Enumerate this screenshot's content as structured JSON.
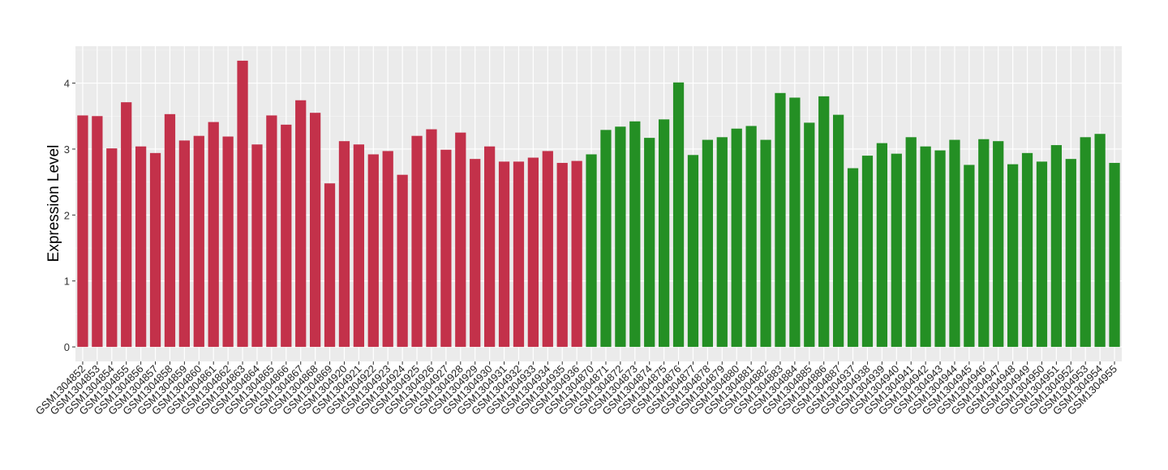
{
  "chart_data": {
    "type": "bar",
    "y_label": "Expression Level",
    "categories": [
      "GSM1304852",
      "GSM1304853",
      "GSM1304854",
      "GSM1304855",
      "GSM1304856",
      "GSM1304857",
      "GSM1304858",
      "GSM1304859",
      "GSM1304860",
      "GSM1304861",
      "GSM1304862",
      "GSM1304863",
      "GSM1304864",
      "GSM1304865",
      "GSM1304866",
      "GSM1304867",
      "GSM1304868",
      "GSM1304869",
      "GSM1304920",
      "GSM1304921",
      "GSM1304922",
      "GSM1304923",
      "GSM1304924",
      "GSM1304925",
      "GSM1304926",
      "GSM1304927",
      "GSM1304928",
      "GSM1304929",
      "GSM1304930",
      "GSM1304931",
      "GSM1304932",
      "GSM1304933",
      "GSM1304934",
      "GSM1304935",
      "GSM1304936",
      "GSM1304870",
      "GSM1304871",
      "GSM1304872",
      "GSM1304873",
      "GSM1304874",
      "GSM1304875",
      "GSM1304876",
      "GSM1304877",
      "GSM1304878",
      "GSM1304879",
      "GSM1304880",
      "GSM1304881",
      "GSM1304882",
      "GSM1304883",
      "GSM1304884",
      "GSM1304885",
      "GSM1304886",
      "GSM1304887",
      "GSM1304937",
      "GSM1304938",
      "GSM1304939",
      "GSM1304940",
      "GSM1304941",
      "GSM1304942",
      "GSM1304943",
      "GSM1304944",
      "GSM1304945",
      "GSM1304946",
      "GSM1304947",
      "GSM1304948",
      "GSM1304949",
      "GSM1304950",
      "GSM1304951",
      "GSM1304952",
      "GSM1304953",
      "GSM1304954",
      "GSM1304955"
    ],
    "values": [
      3.51,
      3.5,
      3.01,
      3.71,
      3.04,
      2.94,
      3.53,
      3.13,
      3.2,
      3.41,
      3.19,
      4.34,
      3.07,
      3.51,
      3.37,
      3.74,
      3.55,
      2.48,
      3.12,
      3.07,
      2.92,
      2.97,
      2.61,
      3.2,
      3.3,
      2.99,
      3.25,
      2.85,
      3.04,
      2.81,
      2.81,
      2.87,
      2.97,
      2.79,
      2.82,
      2.92,
      3.29,
      3.34,
      3.42,
      3.17,
      3.45,
      4.01,
      2.91,
      3.14,
      3.18,
      3.31,
      3.35,
      3.14,
      3.85,
      3.78,
      3.4,
      3.8,
      3.52,
      2.71,
      2.9,
      3.09,
      2.93,
      3.18,
      3.04,
      2.98,
      3.14,
      2.76,
      3.15,
      3.12,
      2.77,
      2.94,
      2.81,
      3.06,
      2.85,
      3.18,
      3.23,
      2.79
    ],
    "colors": [
      "#c3314a",
      "#c3314a",
      "#c3314a",
      "#c3314a",
      "#c3314a",
      "#c3314a",
      "#c3314a",
      "#c3314a",
      "#c3314a",
      "#c3314a",
      "#c3314a",
      "#c3314a",
      "#c3314a",
      "#c3314a",
      "#c3314a",
      "#c3314a",
      "#c3314a",
      "#c3314a",
      "#c3314a",
      "#c3314a",
      "#c3314a",
      "#c3314a",
      "#c3314a",
      "#c3314a",
      "#c3314a",
      "#c3314a",
      "#c3314a",
      "#c3314a",
      "#c3314a",
      "#c3314a",
      "#c3314a",
      "#c3314a",
      "#c3314a",
      "#c3314a",
      "#c3314a",
      "#248f24",
      "#248f24",
      "#248f24",
      "#248f24",
      "#248f24",
      "#248f24",
      "#248f24",
      "#248f24",
      "#248f24",
      "#248f24",
      "#248f24",
      "#248f24",
      "#248f24",
      "#248f24",
      "#248f24",
      "#248f24",
      "#248f24",
      "#248f24",
      "#248f24",
      "#248f24",
      "#248f24",
      "#248f24",
      "#248f24",
      "#248f24",
      "#248f24",
      "#248f24",
      "#248f24",
      "#248f24",
      "#248f24",
      "#248f24",
      "#248f24",
      "#248f24",
      "#248f24",
      "#248f24",
      "#248f24",
      "#248f24",
      "#248f24"
    ],
    "ylim": [
      -0.22,
      4.56
    ],
    "yticks": [
      0,
      1,
      2,
      3,
      4
    ],
    "grid": true
  }
}
